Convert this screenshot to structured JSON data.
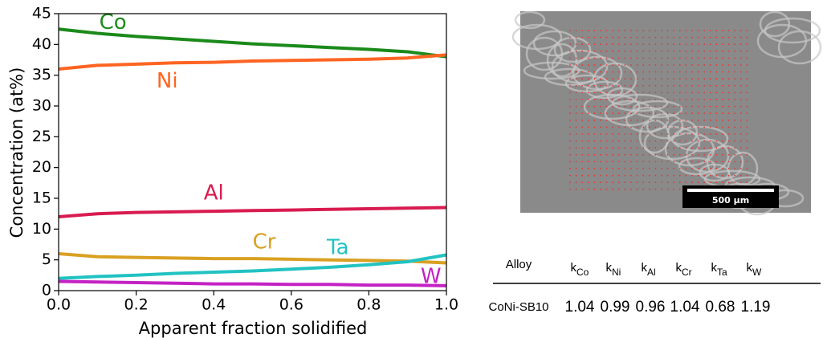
{
  "chart_data": {
    "type": "line",
    "xlabel": "Apparent fraction solidified",
    "ylabel": "Concentration (at%)",
    "x": [
      0,
      0.1,
      0.2,
      0.3,
      0.4,
      0.5,
      0.6,
      0.7,
      0.8,
      0.9,
      1.0
    ],
    "series": [
      {
        "name": "Co",
        "color": "#1b8a1b",
        "values": [
          42.5,
          41.8,
          41.3,
          40.9,
          40.5,
          40.1,
          39.8,
          39.5,
          39.2,
          38.8,
          38.0
        ]
      },
      {
        "name": "Ni",
        "color": "#ff6422",
        "values": [
          36.0,
          36.6,
          36.8,
          37.0,
          37.1,
          37.3,
          37.4,
          37.5,
          37.6,
          37.8,
          38.3
        ]
      },
      {
        "name": "Al",
        "color": "#d81b50",
        "values": [
          12.0,
          12.5,
          12.7,
          12.8,
          12.9,
          13.0,
          13.1,
          13.2,
          13.3,
          13.4,
          13.5
        ]
      },
      {
        "name": "Cr",
        "color": "#d9a022",
        "values": [
          6.0,
          5.5,
          5.4,
          5.3,
          5.2,
          5.2,
          5.1,
          5.0,
          4.9,
          4.8,
          4.5
        ]
      },
      {
        "name": "Ta",
        "color": "#22c2c2",
        "values": [
          2.0,
          2.3,
          2.5,
          2.8,
          3.0,
          3.2,
          3.5,
          3.8,
          4.2,
          4.7,
          5.8
        ]
      },
      {
        "name": "W",
        "color": "#c422c4",
        "values": [
          1.5,
          1.4,
          1.3,
          1.2,
          1.1,
          1.1,
          1.0,
          1.0,
          0.9,
          0.9,
          0.8
        ]
      }
    ],
    "xlim": [
      0,
      1
    ],
    "ylim": [
      0,
      45
    ],
    "xticks": [
      {
        "value": 0,
        "label": "0.0"
      },
      0.2,
      0.4,
      0.6,
      0.8,
      {
        "value": 1,
        "label": "1.0"
      }
    ],
    "yticks": [
      0,
      5,
      10,
      15,
      20,
      25,
      30,
      35,
      40,
      45
    ]
  },
  "image": {
    "scale_bar": "500 μm"
  },
  "table": {
    "header": [
      "Alloy",
      {
        "base": "k",
        "sub": "Co"
      },
      {
        "base": "k",
        "sub": "Ni"
      },
      {
        "base": "k",
        "sub": "Al"
      },
      {
        "base": "k",
        "sub": "Cr"
      },
      {
        "base": "k",
        "sub": "Ta"
      },
      {
        "base": "k",
        "sub": "W"
      }
    ],
    "rows": [
      [
        "CoNi-SB10",
        1.04,
        0.99,
        0.96,
        1.04,
        0.68,
        1.19
      ]
    ]
  }
}
